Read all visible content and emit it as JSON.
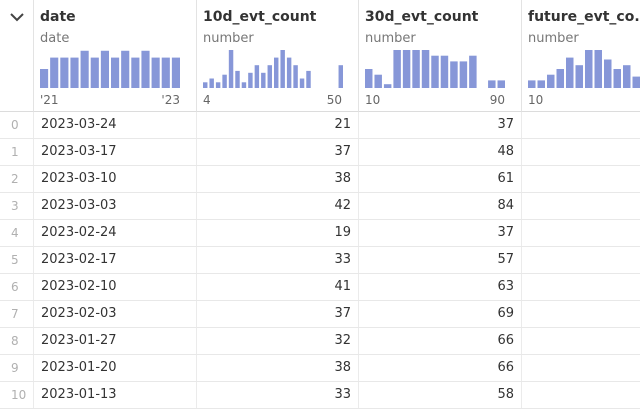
{
  "columns": [
    {
      "title": "date",
      "dtype": "date",
      "range_min": "'21",
      "range_max": "'23",
      "hist": [
        0.5,
        0.8,
        0.8,
        0.8,
        0.98,
        0.8,
        0.98,
        0.8,
        0.98,
        0.8,
        0.98,
        0.8,
        0.8,
        0.8
      ]
    },
    {
      "title": "10d_evt_count",
      "dtype": "number",
      "range_min": "4",
      "range_max": "50",
      "hist": [
        0.15,
        0.25,
        0.15,
        0.35,
        1.0,
        0.45,
        0.15,
        0.4,
        0.6,
        0.4,
        0.6,
        0.8,
        1.0,
        0.8,
        0.6,
        0.25,
        0.45,
        0,
        0,
        0,
        0,
        0.6
      ]
    },
    {
      "title": "30d_evt_count",
      "dtype": "number",
      "range_min": "10",
      "range_max": "90",
      "hist": [
        0.5,
        0.35,
        0.1,
        1.0,
        1.0,
        1.0,
        1.0,
        0.85,
        0.85,
        0.7,
        0.7,
        0.85,
        0,
        0.2,
        0.2
      ]
    },
    {
      "title": "future_evt_co...",
      "dtype": "number",
      "range_min": "10",
      "range_max": "",
      "hist": [
        0.2,
        0.2,
        0.35,
        0.5,
        0.8,
        0.6,
        1.0,
        1.0,
        0.75,
        0.5,
        0.6,
        0.3
      ]
    }
  ],
  "rows": [
    {
      "index": "0",
      "date": "2023-03-24",
      "c10d": "21",
      "c30d": "37",
      "future": ""
    },
    {
      "index": "1",
      "date": "2023-03-17",
      "c10d": "37",
      "c30d": "48",
      "future": ""
    },
    {
      "index": "2",
      "date": "2023-03-10",
      "c10d": "38",
      "c30d": "61",
      "future": ""
    },
    {
      "index": "3",
      "date": "2023-03-03",
      "c10d": "42",
      "c30d": "84",
      "future": ""
    },
    {
      "index": "4",
      "date": "2023-02-24",
      "c10d": "19",
      "c30d": "37",
      "future": ""
    },
    {
      "index": "5",
      "date": "2023-02-17",
      "c10d": "33",
      "c30d": "57",
      "future": ""
    },
    {
      "index": "6",
      "date": "2023-02-10",
      "c10d": "41",
      "c30d": "63",
      "future": ""
    },
    {
      "index": "7",
      "date": "2023-02-03",
      "c10d": "37",
      "c30d": "69",
      "future": ""
    },
    {
      "index": "8",
      "date": "2023-01-27",
      "c10d": "32",
      "c30d": "66",
      "future": ""
    },
    {
      "index": "9",
      "date": "2023-01-20",
      "c10d": "38",
      "c30d": "66",
      "future": ""
    },
    {
      "index": "10",
      "date": "2023-01-13",
      "c10d": "33",
      "c30d": "58",
      "future": ""
    }
  ],
  "colors": {
    "histogram": "#8797d8",
    "index_text": "#b0b0b0"
  },
  "icons": {
    "collapse": "chevron-down-icon"
  }
}
